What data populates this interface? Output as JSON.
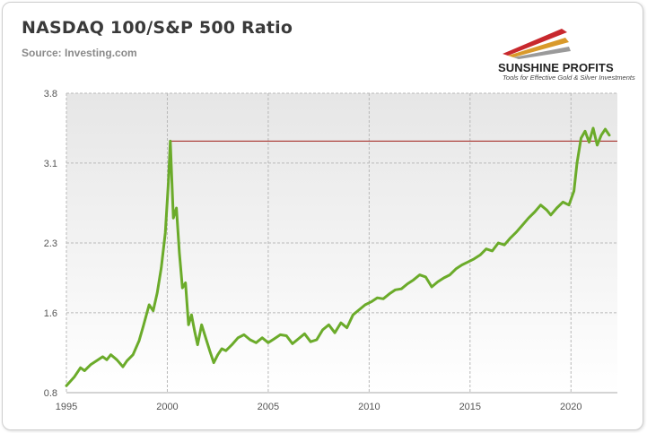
{
  "header": {
    "title": "NASDAQ 100/S&P 500 Ratio",
    "source": "Source: Investing.com"
  },
  "logo": {
    "name": "SUNSHINE PROFITS",
    "tagline": "Tools for Effective Gold & Silver Investments",
    "colors": [
      "#c8282d",
      "#d99a2b",
      "#9a9a9a"
    ]
  },
  "chart_data": {
    "type": "line",
    "title": "NASDAQ 100/S&P 500 Ratio",
    "xlabel": "",
    "ylabel": "",
    "xlim": [
      1995,
      2022.3
    ],
    "ylim": [
      0.8,
      3.8
    ],
    "x_ticks": [
      1995,
      2000,
      2005,
      2010,
      2015,
      2020
    ],
    "x_tick_labels": [
      "1995",
      "2000",
      "2005",
      "2010",
      "2015",
      "2020"
    ],
    "y_ticks": [
      0.8,
      1.6,
      2.3,
      3.1,
      3.8
    ],
    "y_tick_labels": [
      "0.8",
      "1.6",
      "2.3",
      "3.1",
      "3.8"
    ],
    "grid": true,
    "background": "gradient-gray",
    "series": [
      {
        "color": "#6bab2a",
        "x": [
          1995.0,
          1995.4,
          1995.7,
          1995.9,
          1996.2,
          1996.5,
          1996.8,
          1997.0,
          1997.2,
          1997.5,
          1997.8,
          1998.0,
          1998.3,
          1998.6,
          1998.8,
          1999.1,
          1999.3,
          1999.5,
          1999.7,
          1999.9,
          2000.05,
          2000.15,
          2000.22,
          2000.3,
          2000.45,
          2000.6,
          2000.75,
          2000.9,
          2001.05,
          2001.2,
          2001.35,
          2001.5,
          2001.7,
          2001.9,
          2002.1,
          2002.3,
          2002.5,
          2002.7,
          2002.9,
          2003.2,
          2003.5,
          2003.8,
          2004.1,
          2004.4,
          2004.7,
          2005.0,
          2005.3,
          2005.6,
          2005.9,
          2006.2,
          2006.5,
          2006.8,
          2007.1,
          2007.4,
          2007.7,
          2008.0,
          2008.3,
          2008.6,
          2008.9,
          2009.2,
          2009.5,
          2009.8,
          2010.1,
          2010.4,
          2010.7,
          2011.0,
          2011.3,
          2011.6,
          2011.9,
          2012.2,
          2012.5,
          2012.8,
          2013.1,
          2013.4,
          2013.7,
          2014.0,
          2014.3,
          2014.6,
          2014.9,
          2015.2,
          2015.5,
          2015.8,
          2016.1,
          2016.4,
          2016.7,
          2017.0,
          2017.3,
          2017.6,
          2017.9,
          2018.2,
          2018.5,
          2018.8,
          2019.0,
          2019.3,
          2019.6,
          2019.9,
          2020.15,
          2020.3,
          2020.5,
          2020.7,
          2020.9,
          2021.1,
          2021.3,
          2021.5,
          2021.7,
          2021.9
        ],
        "values": [
          0.87,
          0.96,
          1.05,
          1.02,
          1.08,
          1.12,
          1.16,
          1.13,
          1.18,
          1.13,
          1.06,
          1.12,
          1.18,
          1.32,
          1.46,
          1.68,
          1.62,
          1.8,
          2.05,
          2.4,
          2.9,
          3.32,
          2.95,
          2.55,
          2.65,
          2.2,
          1.85,
          1.9,
          1.48,
          1.58,
          1.42,
          1.28,
          1.48,
          1.35,
          1.22,
          1.1,
          1.18,
          1.24,
          1.22,
          1.28,
          1.35,
          1.38,
          1.33,
          1.3,
          1.35,
          1.3,
          1.34,
          1.38,
          1.37,
          1.29,
          1.34,
          1.39,
          1.31,
          1.33,
          1.43,
          1.48,
          1.4,
          1.5,
          1.45,
          1.58,
          1.63,
          1.68,
          1.71,
          1.75,
          1.74,
          1.79,
          1.83,
          1.84,
          1.89,
          1.93,
          1.98,
          1.96,
          1.86,
          1.91,
          1.95,
          1.98,
          2.04,
          2.08,
          2.11,
          2.14,
          2.18,
          2.24,
          2.22,
          2.3,
          2.28,
          2.35,
          2.41,
          2.48,
          2.55,
          2.61,
          2.68,
          2.63,
          2.58,
          2.65,
          2.71,
          2.68,
          2.82,
          3.1,
          3.35,
          3.42,
          3.31,
          3.45,
          3.28,
          3.38,
          3.44,
          3.38
        ]
      }
    ],
    "reference_line": {
      "y": 3.32,
      "x_start": 2000.15,
      "x_end": 2022.3,
      "color": "#a8332d"
    }
  }
}
